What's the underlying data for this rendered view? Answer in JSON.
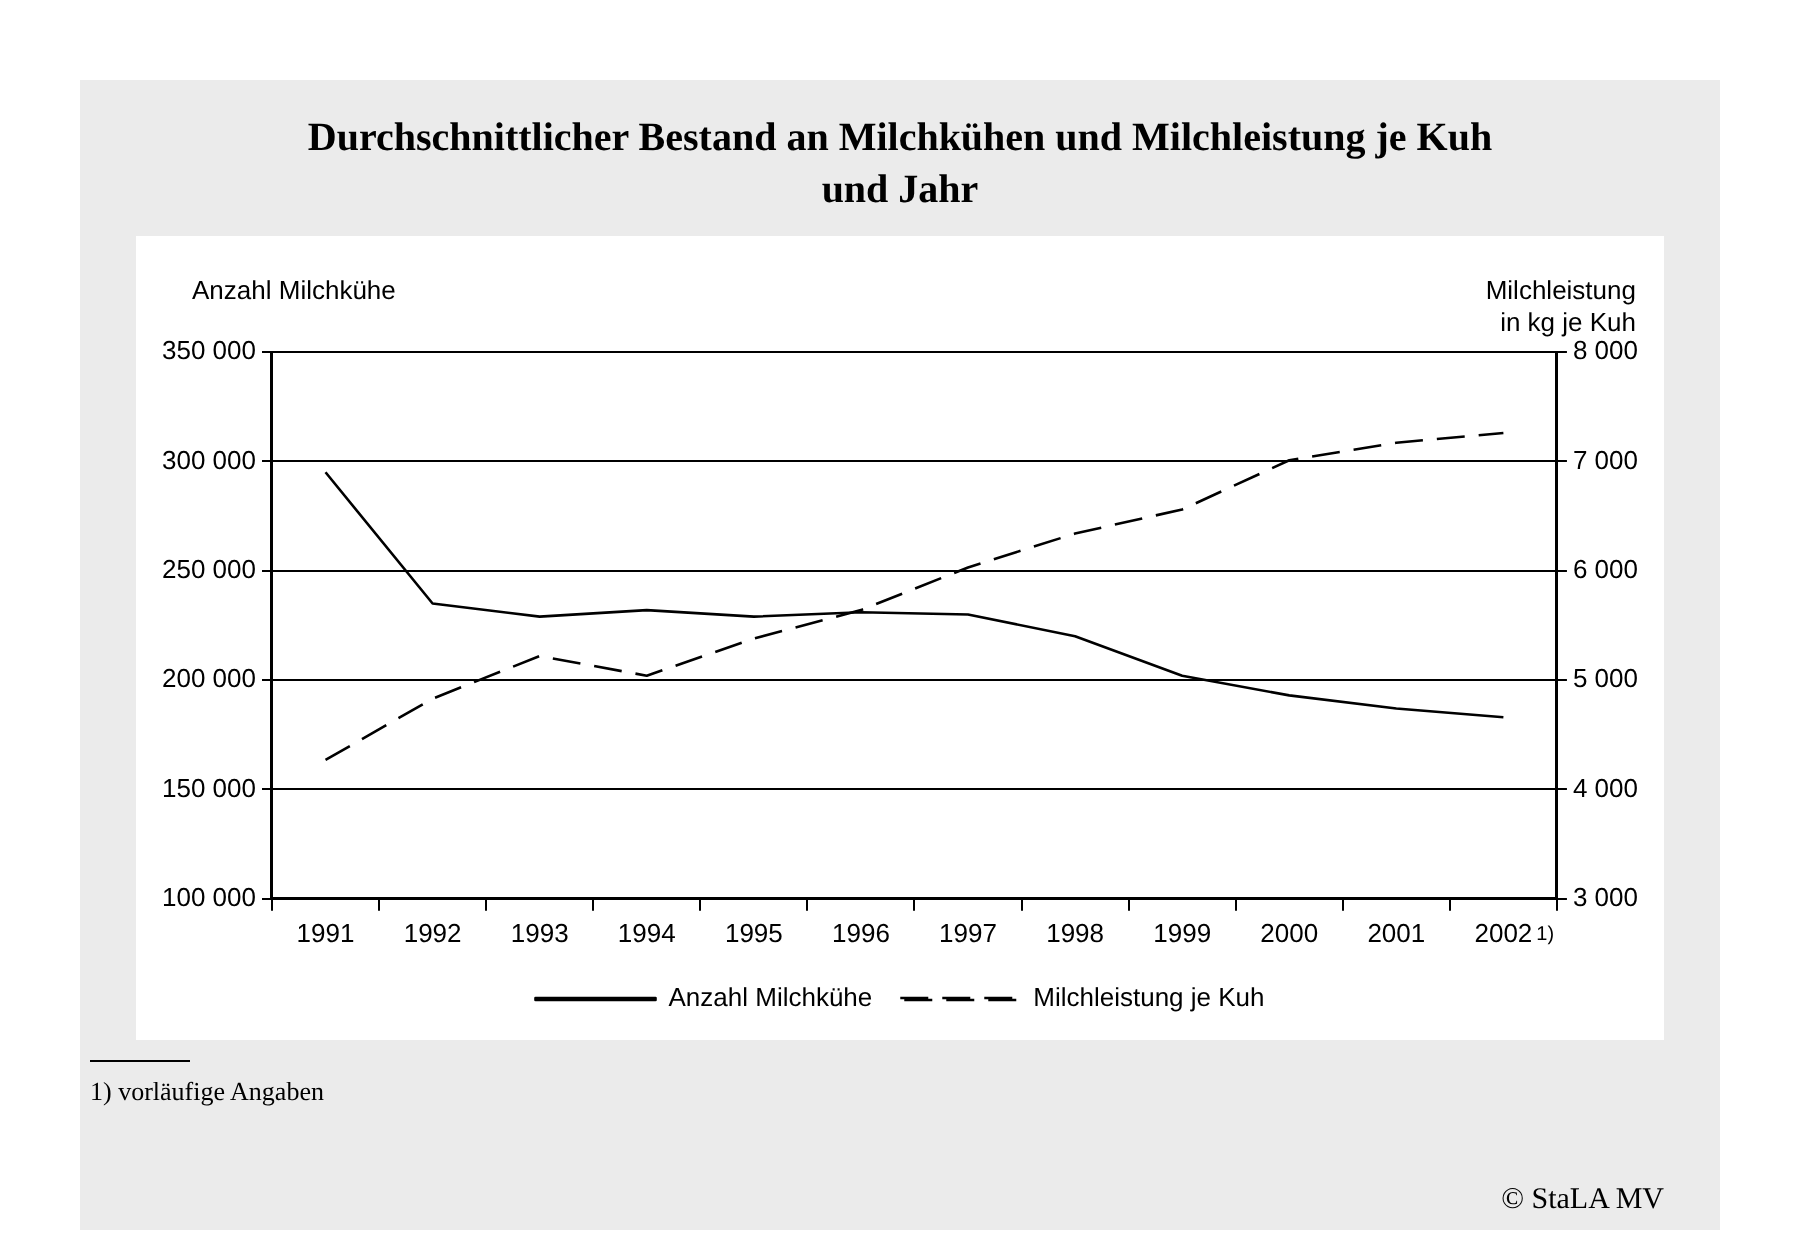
{
  "chart_data": {
    "type": "line",
    "title": "Durchschnittlicher Bestand an Milchkühen und Milchleistung je Kuh und Jahr",
    "ylabel": "Anzahl Milchkühe",
    "y2label": "Milchleistung\nin kg je Kuh",
    "categories": [
      "1991",
      "1992",
      "1993",
      "1994",
      "1995",
      "1996",
      "1997",
      "1998",
      "1999",
      "2000",
      "2001",
      "2002$^{1)}$"
    ],
    "series": [
      {
        "name": "Anzahl Milchkühe",
        "color": "#000000",
        "line_style": "solid",
        "values": [
          295000,
          235000,
          229000,
          232000,
          229000,
          231000,
          230000,
          220000,
          202000,
          193000,
          187000,
          183000
        ]
      },
      {
        "name": "Milchleistung je Kuh",
        "color": "#000000",
        "line_style": "dashed",
        "axis": "y2",
        "values": [
          4270,
          4830,
          5220,
          5040,
          5380,
          5640,
          6030,
          6340,
          6560,
          7010,
          7170,
          7260
        ]
      }
    ],
    "ylim": [
      100000,
      350000
    ],
    "yticks": [
      {
        "value": 100000,
        "label": "100 000"
      },
      {
        "value": 150000,
        "label": "150 000"
      },
      {
        "value": 200000,
        "label": "200 000"
      },
      {
        "value": 250000,
        "label": "250 000"
      },
      {
        "value": 300000,
        "label": "300 000"
      },
      {
        "value": 350000,
        "label": "350 000"
      }
    ],
    "y2lim": [
      3000,
      8000
    ],
    "y2ticks": [
      {
        "value": 3000,
        "label": "3 000"
      },
      {
        "value": 4000,
        "label": "4 000"
      },
      {
        "value": 5000,
        "label": "5 000"
      },
      {
        "value": 6000,
        "label": "6 000"
      },
      {
        "value": 7000,
        "label": "7 000"
      },
      {
        "value": 8000,
        "label": "8 000"
      }
    ],
    "grid": "y",
    "legend": "bottom",
    "marker": "none",
    "annotations": [
      "1) vorläufige Angaben",
      "© StaLA MV"
    ]
  }
}
